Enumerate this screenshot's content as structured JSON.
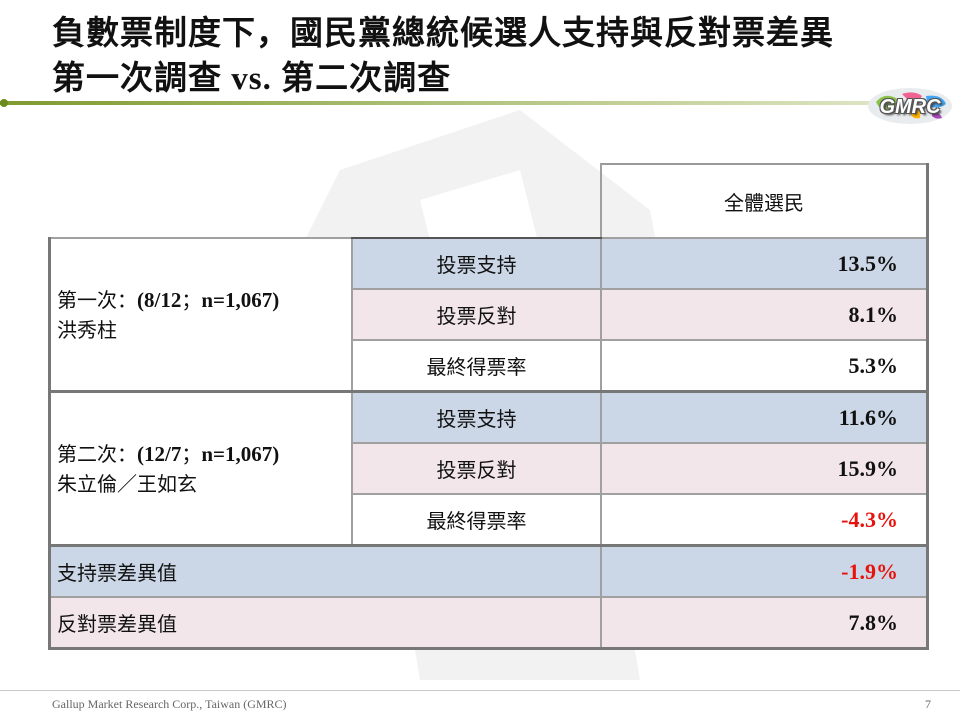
{
  "title": {
    "line1": "負數票制度下，國民黨總統候選人支持與反對票差異",
    "line2_a": "第一次調查",
    "line2_b": " vs. ",
    "line2_c": "第二次調查"
  },
  "logo": {
    "text": "GMRC"
  },
  "table": {
    "column_header": "全體選民",
    "groups": [
      {
        "label_prefix": "第一次：",
        "label_detail": "(8/12",
        "label_sep": "；",
        "label_n": "n=1,067)",
        "candidate": "洪秀柱",
        "rows": [
          {
            "label": "投票支持",
            "value": "13.5%"
          },
          {
            "label": "投票反對",
            "value": "8.1%"
          },
          {
            "label": "最終得票率",
            "value": "5.3%"
          }
        ]
      },
      {
        "label_prefix": "第二次：",
        "label_detail": "(12/7",
        "label_sep": "；",
        "label_n": "n=1,067)",
        "candidate": "朱立倫／王如玄",
        "rows": [
          {
            "label": "投票支持",
            "value": "11.6%"
          },
          {
            "label": "投票反對",
            "value": "15.9%"
          },
          {
            "label": "最終得票率",
            "value": "-4.3%"
          }
        ]
      }
    ],
    "diffs": [
      {
        "label": "支持票差異值",
        "value": "-1.9%"
      },
      {
        "label": "反對票差異值",
        "value": "7.8%"
      }
    ]
  },
  "colors": {
    "negative": "#e8120c",
    "support_row": "#cbd7e6",
    "oppose_row": "#f2e6ea"
  },
  "footer": {
    "company": "Gallup Market Research Corp., Taiwan (GMRC)",
    "page": "7"
  }
}
